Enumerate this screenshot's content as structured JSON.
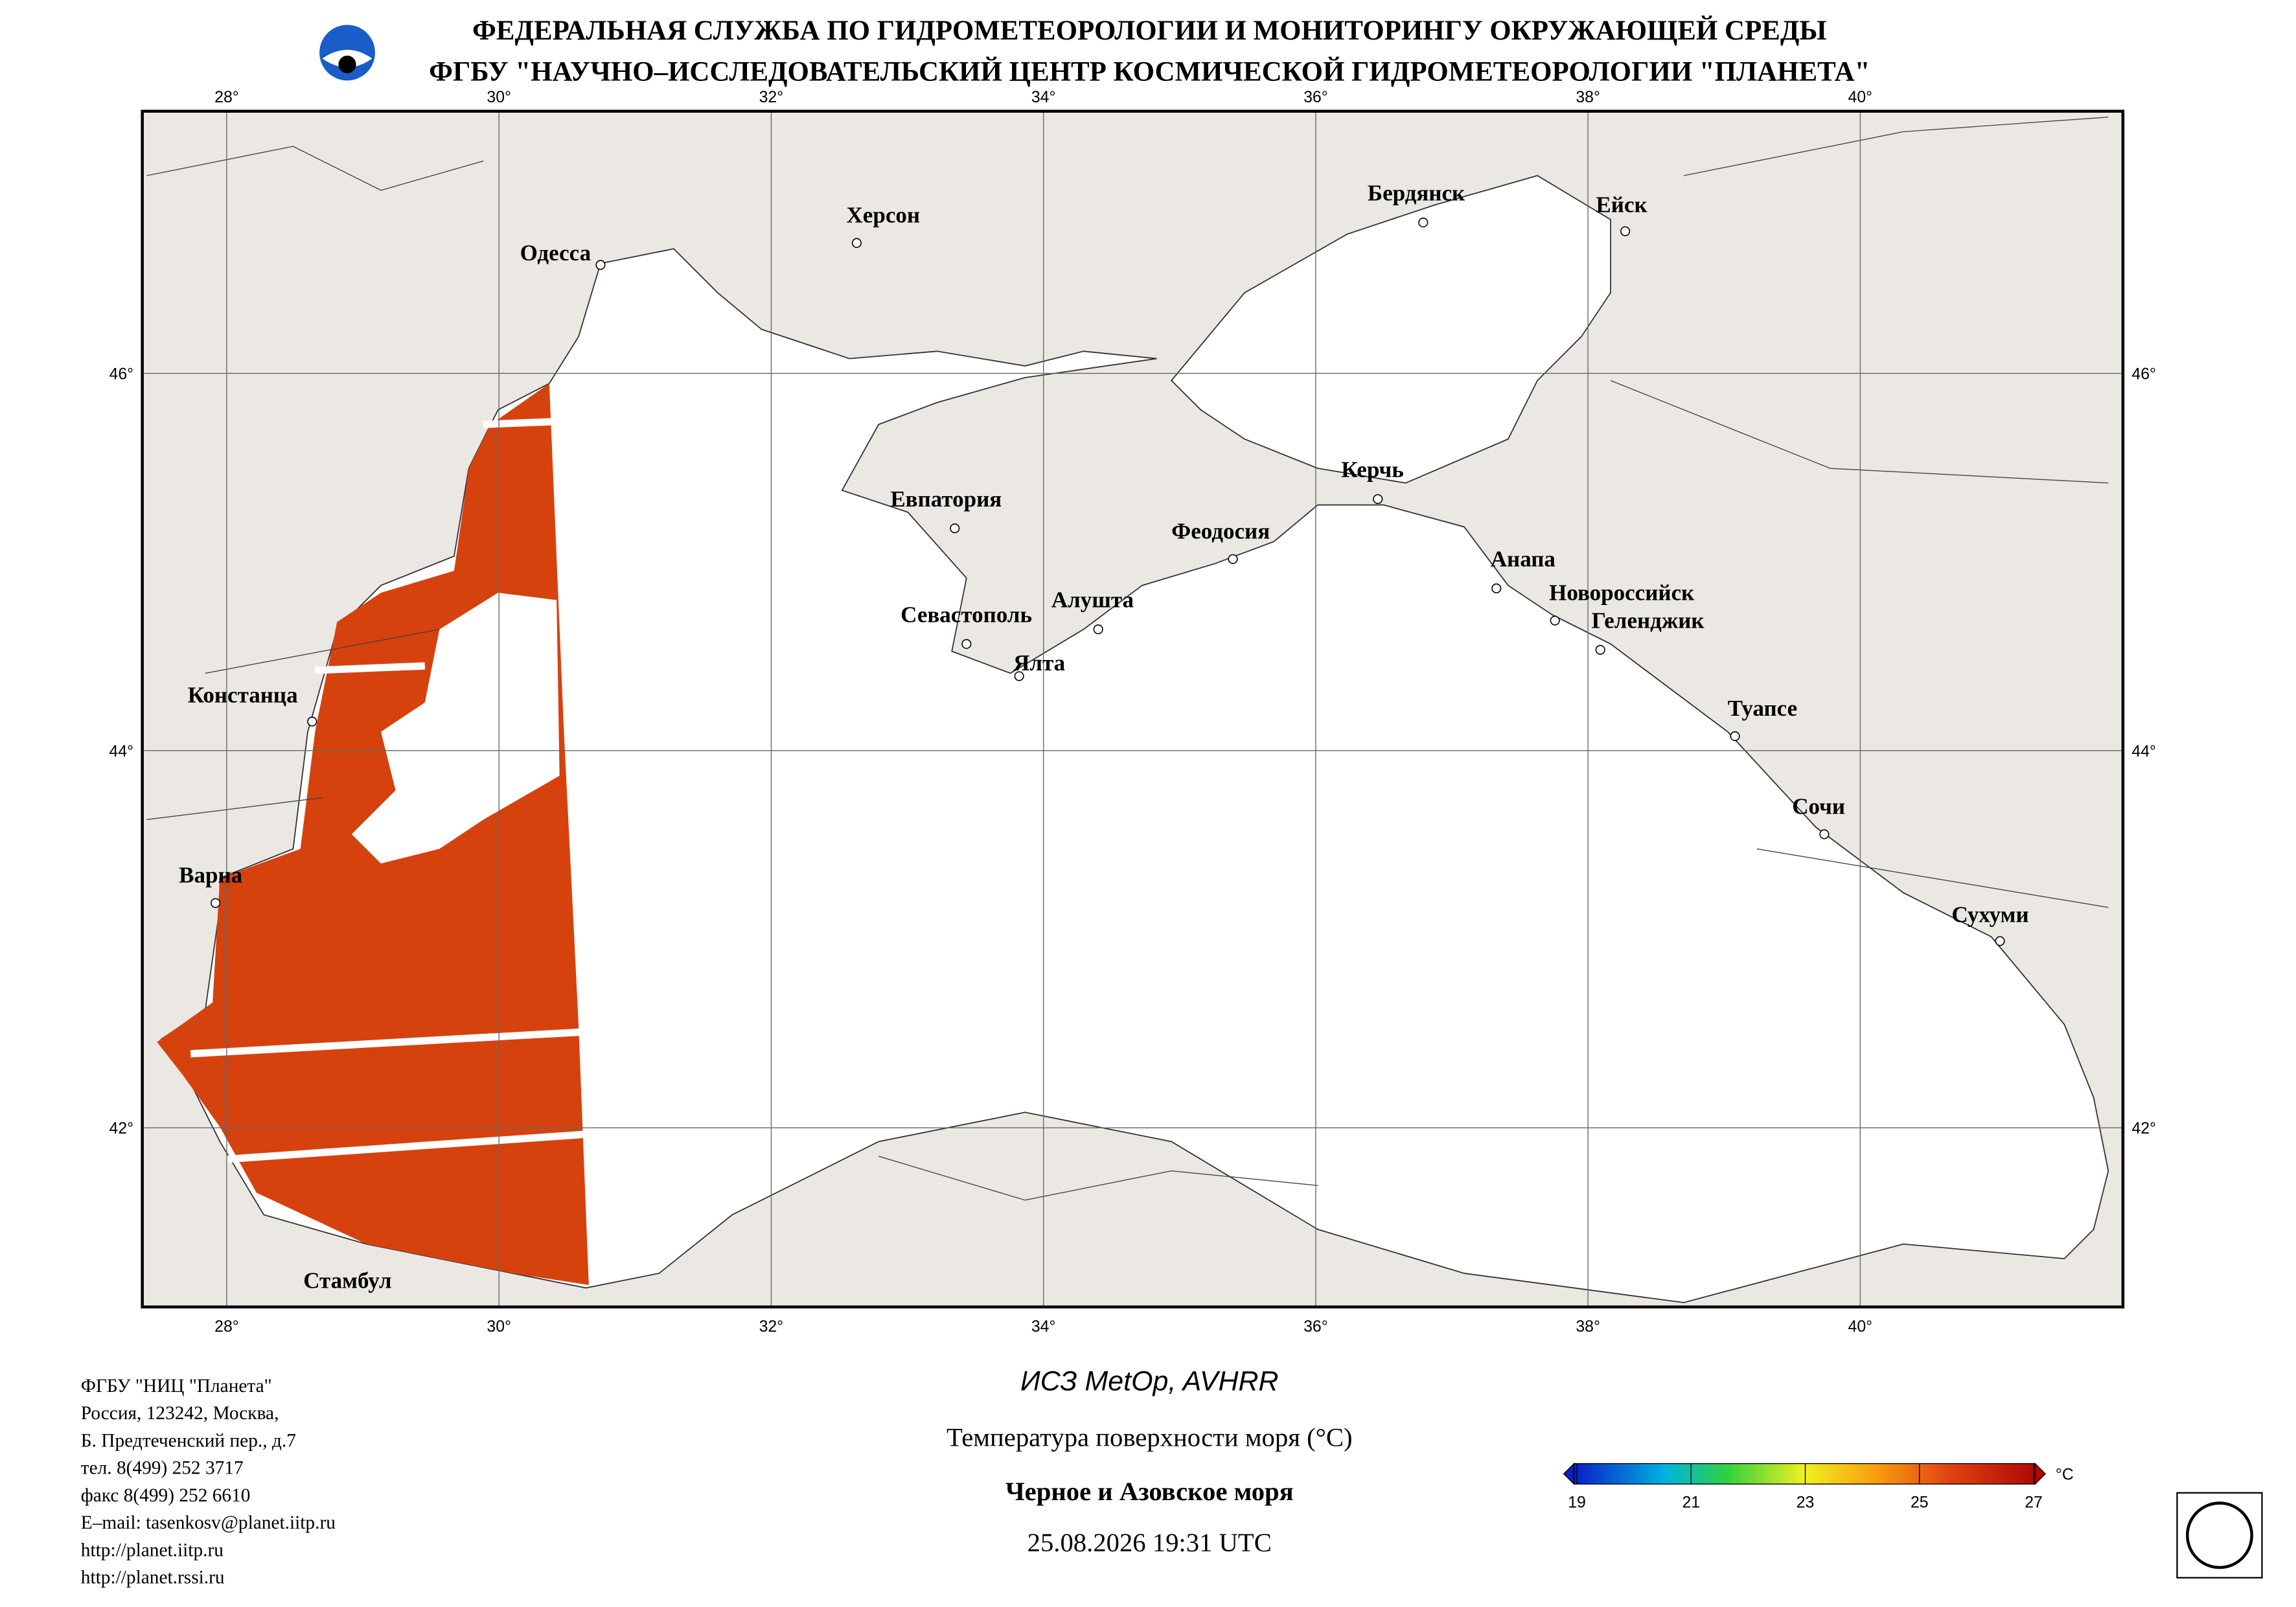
{
  "header": {
    "line1": "ФЕДЕРАЛЬНАЯ СЛУЖБА ПО ГИДРОМЕТЕОРОЛОГИИ И МОНИТОРИНГУ ОКРУЖАЮЩЕЙ СРЕДЫ",
    "line2": "ФГБУ \"НАУЧНО–ИССЛЕДОВАТЕЛЬСКИЙ ЦЕНТР КОСМИЧЕСКОЙ ГИДРОМЕТЕОРОЛОГИИ \"ПЛАНЕТА\""
  },
  "map": {
    "lon_range": [
      27.38,
      41.93
    ],
    "lat_range": [
      41.05,
      47.39
    ],
    "lon_ticks": [
      {
        "value": 28,
        "label": "28°"
      },
      {
        "value": 30,
        "label": "30°"
      },
      {
        "value": 32,
        "label": "32°"
      },
      {
        "value": 34,
        "label": "34°"
      },
      {
        "value": 36,
        "label": "36°"
      },
      {
        "value": 38,
        "label": "38°"
      },
      {
        "value": 40,
        "label": "40°"
      }
    ],
    "lat_ticks": [
      {
        "value": 46,
        "label": "46°"
      },
      {
        "value": 44,
        "label": "44°"
      },
      {
        "value": 42,
        "label": "42°"
      }
    ],
    "cities": [
      "Одесса",
      "Херсон",
      "Бердянск",
      "Ейск",
      "Евпатория",
      "Керчь",
      "Феодосия",
      "Анапа",
      "Новороссийск",
      "Геленджик",
      "Севастополь",
      "Алушта",
      "Ялта",
      "Констанца",
      "Туапсе",
      "Сочи",
      "Варна",
      "Сухуми",
      "Стамбул"
    ]
  },
  "footer": {
    "satellite": "ИСЗ MetOp, AVHRR",
    "product": "Температура поверхности моря (°C)",
    "region": "Черное и Азовское моря",
    "datetime": "25.08.2026 19:31 UTC",
    "contacts": [
      "ФГБУ \"НИЦ \"Планета\"",
      "Россия, 123242, Москва,",
      "Б. Предтеченский пер., д.7",
      "тел. 8(499) 252 3717",
      "факс 8(499) 252 6610",
      "E–mail: tasenkosv@planet.iitp.ru",
      "http://planet.iitp.ru",
      "http://planet.rssi.ru"
    ]
  },
  "colorbar": {
    "ticks": [
      19,
      21,
      23,
      25,
      27
    ],
    "unit": "°C"
  }
}
